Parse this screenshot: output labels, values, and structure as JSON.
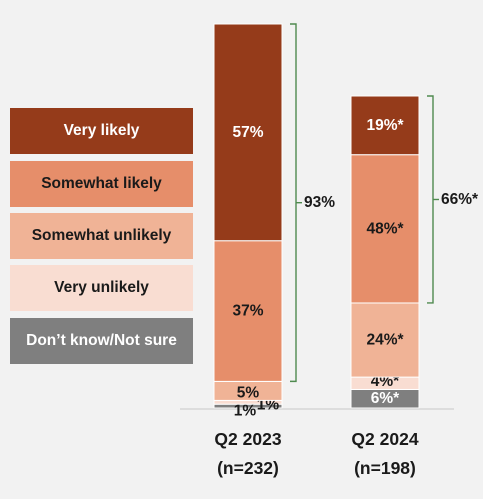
{
  "chart_data": {
    "type": "bar",
    "stacked": true,
    "unit": "%",
    "categories": [
      "Q2 2023",
      "Q2 2024"
    ],
    "category_sublabels": [
      "(n=232)",
      "(n=198)"
    ],
    "series": [
      {
        "name": "Don’t know/Not sure",
        "color": "#7f7f7f",
        "text_color": "#ffffff",
        "values": [
          1,
          6
        ],
        "labels": [
          "1%",
          "6%*"
        ]
      },
      {
        "name": "Very unlikely",
        "color": "#f9ddd2",
        "text_color": "#1a1a1a",
        "values": [
          1,
          4
        ],
        "labels": [
          "1%",
          "4%*"
        ]
      },
      {
        "name": "Somewhat unlikely",
        "color": "#f0b396",
        "text_color": "#1a1a1a",
        "values": [
          5,
          24
        ],
        "labels": [
          "5%",
          "24%*"
        ]
      },
      {
        "name": "Somewhat likely",
        "color": "#e68e6a",
        "text_color": "#1a1a1a",
        "values": [
          37,
          48
        ],
        "labels": [
          "37%",
          "48%*"
        ]
      },
      {
        "name": "Very likely",
        "color": "#953b1a",
        "text_color": "#ffffff",
        "values": [
          57,
          19
        ],
        "labels": [
          "57%",
          "19%*"
        ]
      }
    ],
    "brackets": [
      {
        "category": "Q2 2023",
        "from_series": "Somewhat likely",
        "to_series": "Very likely",
        "label": "93%",
        "color": "#4f8a4f"
      },
      {
        "category": "Q2 2024",
        "from_series": "Somewhat likely",
        "to_series": "Very likely",
        "label": "66%*",
        "color": "#4f8a4f"
      }
    ],
    "legend_order": [
      "Very likely",
      "Somewhat likely",
      "Somewhat unlikely",
      "Very unlikely",
      "Don’t know/Not sure"
    ],
    "legend_position": "left",
    "grid": false
  }
}
